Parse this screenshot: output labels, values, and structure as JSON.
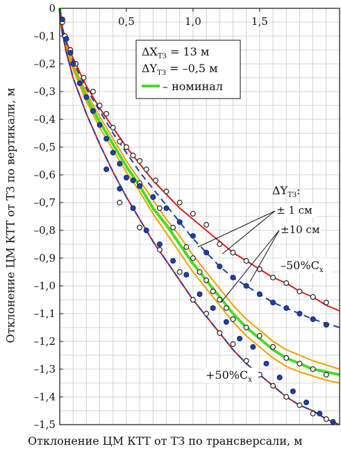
{
  "chart_data": {
    "type": "line",
    "xlabel": "Отклонение ЦМ КТТ от ТЗ по трансверсали, м",
    "ylabel": "Отклонение ЦМ КТТ от ТЗ по вертикали, м",
    "xlim": [
      0,
      2.1
    ],
    "ylim": [
      -1.5,
      0
    ],
    "x_ticks": [
      {
        "value": 0.5,
        "label": "0,5"
      },
      {
        "value": 1.0,
        "label": "1,0"
      },
      {
        "value": 1.5,
        "label": "1,5"
      }
    ],
    "y_ticks": [
      {
        "value": 0,
        "label": "0"
      },
      {
        "value": -0.1,
        "label": "–0,1"
      },
      {
        "value": -0.2,
        "label": "–0,2"
      },
      {
        "value": -0.3,
        "label": "–0,3"
      },
      {
        "value": -0.4,
        "label": "–0,4"
      },
      {
        "value": -0.5,
        "label": "–0,5"
      },
      {
        "value": -0.6,
        "label": "–0,6"
      },
      {
        "value": -0.7,
        "label": "–0,7"
      },
      {
        "value": -0.8,
        "label": "–0,8"
      },
      {
        "value": -0.9,
        "label": "–0,9"
      },
      {
        "value": -1.0,
        "label": "–1,0"
      },
      {
        "value": -1.1,
        "label": "–1,1"
      },
      {
        "value": -1.2,
        "label": "–1,2"
      },
      {
        "value": -1.3,
        "label": "–1,3"
      },
      {
        "value": -1.4,
        "label": "–1,4"
      },
      {
        "value": -1.5,
        "label": "–1,5"
      }
    ],
    "grid": true,
    "legend": {
      "placement": "top-right",
      "lines": [
        "ΔX",
        "ТЗ",
        " = 13 м",
        "ΔY",
        "ТЗ",
        " = –0,5 м",
        "– номинал"
      ]
    },
    "colors": {
      "nominal": "#44dd22",
      "red": "#dd1a1a",
      "orange": "#f0a000",
      "blue": "#1f3fa8",
      "grid": "#c6c6c6"
    },
    "annotations": {
      "dy_label": "ΔY",
      "dy_sub": "ТЗ",
      "dy_colon": ":",
      "pm1": "± 1 см",
      "pm10": "±10 см",
      "minus50": "–50%C",
      "minus50_sub": "x",
      "plus50": "+50%C",
      "plus50_sub": "x"
    },
    "series": [
      {
        "id": "nominal",
        "style": "solid-thick",
        "color": "nominal",
        "x": [
          0,
          0.02,
          0.05,
          0.1,
          0.2,
          0.3,
          0.4,
          0.5,
          0.6,
          0.7,
          0.8,
          0.9,
          1.0,
          1.1,
          1.2,
          1.3,
          1.4,
          1.5,
          1.6,
          1.7,
          1.8,
          1.9,
          2.0,
          2.1
        ],
        "y": [
          0,
          -0.08,
          -0.14,
          -0.21,
          -0.32,
          -0.41,
          -0.49,
          -0.57,
          -0.64,
          -0.72,
          -0.78,
          -0.85,
          -0.92,
          -0.98,
          -1.04,
          -1.1,
          -1.15,
          -1.19,
          -1.23,
          -1.26,
          -1.28,
          -1.3,
          -1.31,
          -1.32
        ]
      },
      {
        "id": "nominal-upper",
        "style": "solid",
        "color": "orange",
        "x": [
          0,
          0.02,
          0.05,
          0.1,
          0.2,
          0.3,
          0.4,
          0.5,
          0.6,
          0.7,
          0.8,
          0.9,
          1.0,
          1.1,
          1.2,
          1.3,
          1.4,
          1.5,
          1.6,
          1.7,
          1.8,
          1.9,
          2.0,
          2.1
        ],
        "y": [
          0,
          -0.075,
          -0.13,
          -0.2,
          -0.305,
          -0.39,
          -0.47,
          -0.55,
          -0.62,
          -0.69,
          -0.76,
          -0.82,
          -0.89,
          -0.95,
          -1.01,
          -1.07,
          -1.12,
          -1.16,
          -1.2,
          -1.23,
          -1.25,
          -1.27,
          -1.285,
          -1.3
        ]
      },
      {
        "id": "nominal-lower",
        "style": "solid",
        "color": "orange",
        "x": [
          0,
          0.02,
          0.05,
          0.1,
          0.2,
          0.3,
          0.4,
          0.5,
          0.6,
          0.7,
          0.8,
          0.9,
          1.0,
          1.1,
          1.2,
          1.3,
          1.4,
          1.5,
          1.6,
          1.7,
          1.8,
          1.9,
          2.0,
          2.1
        ],
        "y": [
          0,
          -0.085,
          -0.15,
          -0.22,
          -0.335,
          -0.43,
          -0.51,
          -0.59,
          -0.66,
          -0.74,
          -0.81,
          -0.88,
          -0.95,
          -1.01,
          -1.07,
          -1.13,
          -1.18,
          -1.22,
          -1.26,
          -1.29,
          -1.31,
          -1.325,
          -1.34,
          -1.35
        ]
      },
      {
        "id": "minus50-cx",
        "style": "solid",
        "color": "red",
        "x": [
          0,
          0.02,
          0.05,
          0.1,
          0.2,
          0.3,
          0.4,
          0.5,
          0.6,
          0.7,
          0.8,
          0.9,
          1.0,
          1.1,
          1.2,
          1.3,
          1.4,
          1.5,
          1.6,
          1.7,
          1.8,
          1.9,
          2.0,
          2.1
        ],
        "y": [
          0,
          -0.07,
          -0.12,
          -0.18,
          -0.28,
          -0.36,
          -0.43,
          -0.5,
          -0.56,
          -0.62,
          -0.67,
          -0.72,
          -0.76,
          -0.8,
          -0.84,
          -0.88,
          -0.91,
          -0.94,
          -0.97,
          -0.99,
          -1.02,
          -1.04,
          -1.07,
          -1.09
        ]
      },
      {
        "id": "plus50-cx",
        "style": "solid",
        "color": "red",
        "x": [
          0,
          0.02,
          0.05,
          0.1,
          0.2,
          0.3,
          0.4,
          0.5,
          0.6,
          0.7,
          0.8,
          0.9,
          1.0,
          1.1,
          1.2,
          1.3,
          1.4,
          1.5,
          1.6,
          1.7,
          1.8,
          1.9,
          2.0,
          2.1
        ],
        "y": [
          0,
          -0.09,
          -0.16,
          -0.25,
          -0.38,
          -0.49,
          -0.59,
          -0.68,
          -0.76,
          -0.84,
          -0.91,
          -0.98,
          -1.05,
          -1.11,
          -1.17,
          -1.23,
          -1.28,
          -1.32,
          -1.36,
          -1.4,
          -1.43,
          -1.45,
          -1.48,
          -1.5
        ]
      },
      {
        "id": "blue-upper",
        "style": "dashed",
        "color": "blue",
        "x": [
          0,
          0.02,
          0.05,
          0.1,
          0.2,
          0.3,
          0.4,
          0.5,
          0.6,
          0.7,
          0.8,
          0.9,
          1.0,
          1.1,
          1.2,
          1.3,
          1.4,
          1.5,
          1.6,
          1.7,
          1.8,
          1.9,
          2.0,
          2.1
        ],
        "y": [
          0,
          -0.07,
          -0.125,
          -0.19,
          -0.29,
          -0.37,
          -0.45,
          -0.52,
          -0.59,
          -0.65,
          -0.71,
          -0.77,
          -0.83,
          -0.88,
          -0.93,
          -0.97,
          -1.0,
          -1.03,
          -1.06,
          -1.08,
          -1.1,
          -1.12,
          -1.135,
          -1.15
        ]
      },
      {
        "id": "blue-lower",
        "style": "dashed",
        "color": "blue",
        "x": [
          0,
          0.02,
          0.05,
          0.1,
          0.2,
          0.3,
          0.4,
          0.5,
          0.6,
          0.7,
          0.8,
          0.9,
          1.0,
          1.1,
          1.2,
          1.3,
          1.4,
          1.5,
          1.6,
          1.7,
          1.8,
          1.9,
          2.0,
          2.1
        ],
        "y": [
          0,
          -0.09,
          -0.16,
          -0.25,
          -0.38,
          -0.49,
          -0.59,
          -0.68,
          -0.76,
          -0.84,
          -0.91,
          -0.98,
          -1.05,
          -1.11,
          -1.17,
          -1.23,
          -1.28,
          -1.32,
          -1.36,
          -1.4,
          -1.43,
          -1.45,
          -1.48,
          -1.5
        ]
      }
    ],
    "markers_open": [
      {
        "x": 0.02,
        "y": -0.05
      },
      {
        "x": 0.04,
        "y": -0.1
      },
      {
        "x": 0.08,
        "y": -0.15
      },
      {
        "x": 0.12,
        "y": -0.2
      },
      {
        "x": 0.18,
        "y": -0.25
      },
      {
        "x": 0.25,
        "y": -0.3
      },
      {
        "x": 0.3,
        "y": -0.35
      },
      {
        "x": 0.35,
        "y": -0.38
      },
      {
        "x": 0.4,
        "y": -0.43
      },
      {
        "x": 0.45,
        "y": -0.48
      },
      {
        "x": 0.5,
        "y": -0.5
      },
      {
        "x": 0.55,
        "y": -0.53
      },
      {
        "x": 0.6,
        "y": -0.55
      },
      {
        "x": 0.65,
        "y": -0.58
      },
      {
        "x": 0.72,
        "y": -0.62
      },
      {
        "x": 0.8,
        "y": -0.66
      },
      {
        "x": 0.9,
        "y": -0.7
      },
      {
        "x": 1.0,
        "y": -0.74
      },
      {
        "x": 1.1,
        "y": -0.78
      },
      {
        "x": 1.2,
        "y": -0.85
      },
      {
        "x": 1.3,
        "y": -0.88
      },
      {
        "x": 1.4,
        "y": -0.91
      },
      {
        "x": 1.5,
        "y": -0.94
      },
      {
        "x": 1.6,
        "y": -0.97
      },
      {
        "x": 1.7,
        "y": -0.99
      },
      {
        "x": 1.8,
        "y": -1.02
      },
      {
        "x": 1.9,
        "y": -1.04
      },
      {
        "x": 2.0,
        "y": -1.06
      },
      {
        "x": 0.6,
        "y": -0.63
      },
      {
        "x": 0.7,
        "y": -0.68
      },
      {
        "x": 0.75,
        "y": -0.72
      },
      {
        "x": 0.85,
        "y": -0.79
      },
      {
        "x": 0.95,
        "y": -0.86
      },
      {
        "x": 1.0,
        "y": -0.9
      },
      {
        "x": 1.05,
        "y": -0.95
      },
      {
        "x": 1.1,
        "y": -0.98
      },
      {
        "x": 1.15,
        "y": -1.02
      },
      {
        "x": 1.2,
        "y": -1.05
      },
      {
        "x": 1.25,
        "y": -1.08
      },
      {
        "x": 1.3,
        "y": -1.12
      },
      {
        "x": 1.4,
        "y": -1.15
      },
      {
        "x": 1.5,
        "y": -1.18
      },
      {
        "x": 1.6,
        "y": -1.22
      },
      {
        "x": 1.7,
        "y": -1.26
      },
      {
        "x": 1.8,
        "y": -1.28
      },
      {
        "x": 1.9,
        "y": -1.3
      },
      {
        "x": 2.0,
        "y": -1.32
      },
      {
        "x": 0.45,
        "y": -0.7
      },
      {
        "x": 0.6,
        "y": -0.79
      },
      {
        "x": 0.75,
        "y": -0.87
      },
      {
        "x": 0.9,
        "y": -0.95
      },
      {
        "x": 1.0,
        "y": -1.05
      },
      {
        "x": 1.1,
        "y": -1.1
      },
      {
        "x": 1.2,
        "y": -1.17
      },
      {
        "x": 1.3,
        "y": -1.21
      },
      {
        "x": 1.4,
        "y": -1.27
      },
      {
        "x": 1.5,
        "y": -1.32
      },
      {
        "x": 1.6,
        "y": -1.36
      },
      {
        "x": 1.7,
        "y": -1.4
      },
      {
        "x": 1.8,
        "y": -1.43
      },
      {
        "x": 1.9,
        "y": -1.46
      },
      {
        "x": 2.0,
        "y": -1.48
      }
    ],
    "markers_filled": [
      {
        "x": 0.02,
        "y": -0.04
      },
      {
        "x": 0.05,
        "y": -0.11
      },
      {
        "x": 0.08,
        "y": -0.16
      },
      {
        "x": 0.1,
        "y": -0.2
      },
      {
        "x": 0.15,
        "y": -0.27
      },
      {
        "x": 0.2,
        "y": -0.32
      },
      {
        "x": 0.25,
        "y": -0.37
      },
      {
        "x": 0.3,
        "y": -0.42
      },
      {
        "x": 0.35,
        "y": -0.47
      },
      {
        "x": 0.4,
        "y": -0.52
      },
      {
        "x": 0.45,
        "y": -0.56
      },
      {
        "x": 0.5,
        "y": -0.61
      },
      {
        "x": 0.55,
        "y": -0.62
      },
      {
        "x": 0.6,
        "y": -0.64
      },
      {
        "x": 0.7,
        "y": -0.68
      },
      {
        "x": 0.8,
        "y": -0.72
      },
      {
        "x": 0.9,
        "y": -0.77
      },
      {
        "x": 1.0,
        "y": -0.82
      },
      {
        "x": 1.1,
        "y": -0.88
      },
      {
        "x": 1.2,
        "y": -0.93
      },
      {
        "x": 1.3,
        "y": -0.97
      },
      {
        "x": 1.4,
        "y": -1.0
      },
      {
        "x": 1.5,
        "y": -1.03
      },
      {
        "x": 1.6,
        "y": -1.06
      },
      {
        "x": 1.7,
        "y": -1.08
      },
      {
        "x": 1.8,
        "y": -1.1
      },
      {
        "x": 1.9,
        "y": -1.12
      },
      {
        "x": 2.0,
        "y": -1.14
      },
      {
        "x": 0.35,
        "y": -0.58
      },
      {
        "x": 0.45,
        "y": -0.65
      },
      {
        "x": 0.55,
        "y": -0.72
      },
      {
        "x": 0.65,
        "y": -0.8
      },
      {
        "x": 0.75,
        "y": -0.85
      },
      {
        "x": 0.85,
        "y": -0.91
      },
      {
        "x": 0.95,
        "y": -0.96
      },
      {
        "x": 1.05,
        "y": -1.03
      },
      {
        "x": 1.15,
        "y": -1.08
      },
      {
        "x": 1.25,
        "y": -1.13
      },
      {
        "x": 1.35,
        "y": -1.19
      },
      {
        "x": 1.45,
        "y": -1.22
      },
      {
        "x": 1.55,
        "y": -1.28
      },
      {
        "x": 1.65,
        "y": -1.33
      },
      {
        "x": 1.75,
        "y": -1.38
      },
      {
        "x": 1.85,
        "y": -1.42
      },
      {
        "x": 1.95,
        "y": -1.46
      },
      {
        "x": 2.05,
        "y": -1.49
      }
    ]
  }
}
